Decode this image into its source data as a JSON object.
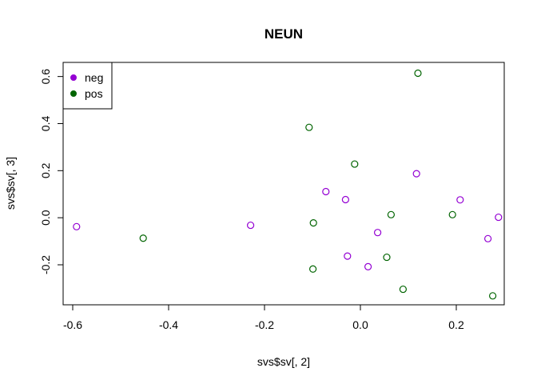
{
  "chart_data": {
    "type": "scatter",
    "title": "NEUN",
    "xlabel": "svs$sv[, 2]",
    "ylabel": "svs$sv[, 3]",
    "xlim": [
      -0.62,
      0.3
    ],
    "ylim": [
      -0.37,
      0.66
    ],
    "x_ticks": [
      -0.6,
      -0.4,
      -0.2,
      0.0,
      0.2
    ],
    "x_tick_labels": [
      "-0.6",
      "-0.4",
      "-0.2",
      "0.0",
      "0.2"
    ],
    "y_ticks": [
      -0.2,
      0.0,
      0.2,
      0.4,
      0.6
    ],
    "y_tick_labels": [
      "-0.2",
      "0.0",
      "0.2",
      "0.4",
      "0.6"
    ],
    "grid": false,
    "legend_position": "top-left",
    "marker": "open-circle",
    "series": [
      {
        "name": "neg",
        "color": "#9400D3",
        "points": [
          {
            "x": -0.592,
            "y": -0.038
          },
          {
            "x": -0.229,
            "y": -0.032
          },
          {
            "x": -0.072,
            "y": 0.111
          },
          {
            "x": -0.031,
            "y": 0.077
          },
          {
            "x": -0.027,
            "y": -0.163
          },
          {
            "x": 0.016,
            "y": -0.208
          },
          {
            "x": 0.036,
            "y": -0.063
          },
          {
            "x": 0.117,
            "y": 0.187
          },
          {
            "x": 0.208,
            "y": 0.076
          },
          {
            "x": 0.266,
            "y": -0.089
          },
          {
            "x": 0.288,
            "y": 0.002
          }
        ]
      },
      {
        "name": "pos",
        "color": "#006400",
        "points": [
          {
            "x": -0.453,
            "y": -0.087
          },
          {
            "x": -0.107,
            "y": 0.384
          },
          {
            "x": -0.098,
            "y": -0.022
          },
          {
            "x": -0.099,
            "y": -0.218
          },
          {
            "x": -0.012,
            "y": 0.228
          },
          {
            "x": 0.064,
            "y": 0.013
          },
          {
            "x": 0.055,
            "y": -0.168
          },
          {
            "x": 0.089,
            "y": -0.304
          },
          {
            "x": 0.12,
            "y": 0.614
          },
          {
            "x": 0.192,
            "y": 0.013
          },
          {
            "x": 0.276,
            "y": -0.332
          }
        ]
      }
    ]
  }
}
